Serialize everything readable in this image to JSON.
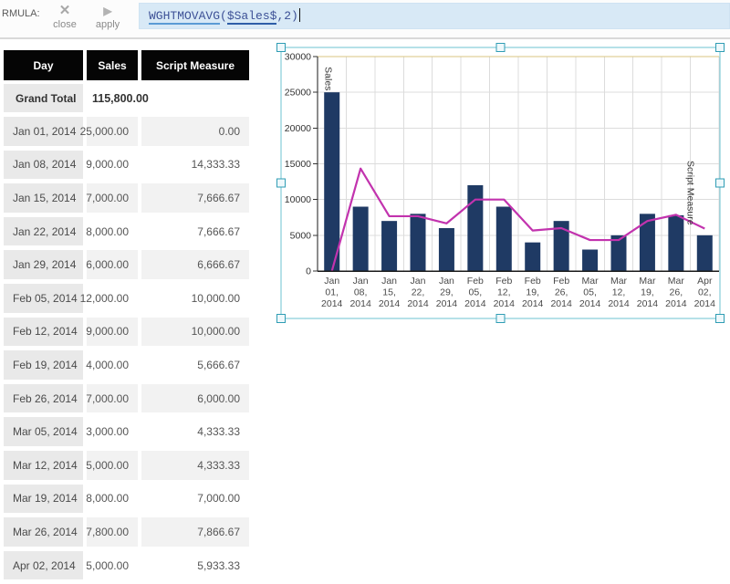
{
  "toolbar": {
    "label": "RMULA:",
    "close_label": "close",
    "apply_label": "apply",
    "close_icon": "✕",
    "apply_icon": "▶",
    "formula": {
      "func": "WGHTMOVAVG",
      "open": "(",
      "arg": "$Sales$",
      "tail": ",2)"
    }
  },
  "table": {
    "columns": [
      "Day",
      "Sales",
      "Script Measure"
    ],
    "grand_total": {
      "label": "Grand Total",
      "sales": "115,800.00",
      "script": ""
    },
    "rows": [
      {
        "day": "Jan 01, 2014",
        "sales": "25,000.00",
        "script": "0.00"
      },
      {
        "day": "Jan 08, 2014",
        "sales": "9,000.00",
        "script": "14,333.33"
      },
      {
        "day": "Jan 15, 2014",
        "sales": "7,000.00",
        "script": "7,666.67"
      },
      {
        "day": "Jan 22, 2014",
        "sales": "8,000.00",
        "script": "7,666.67"
      },
      {
        "day": "Jan 29, 2014",
        "sales": "6,000.00",
        "script": "6,666.67"
      },
      {
        "day": "Feb 05, 2014",
        "sales": "12,000.00",
        "script": "10,000.00"
      },
      {
        "day": "Feb 12, 2014",
        "sales": "9,000.00",
        "script": "10,000.00"
      },
      {
        "day": "Feb 19, 2014",
        "sales": "4,000.00",
        "script": "5,666.67"
      },
      {
        "day": "Feb 26, 2014",
        "sales": "7,000.00",
        "script": "6,000.00"
      },
      {
        "day": "Mar 05, 2014",
        "sales": "3,000.00",
        "script": "4,333.33"
      },
      {
        "day": "Mar 12, 2014",
        "sales": "5,000.00",
        "script": "4,333.33"
      },
      {
        "day": "Mar 19, 2014",
        "sales": "8,000.00",
        "script": "7,000.00"
      },
      {
        "day": "Mar 26, 2014",
        "sales": "7,800.00",
        "script": "7,866.67"
      },
      {
        "day": "Apr 02, 2014",
        "sales": "5,000.00",
        "script": "5,933.33"
      }
    ]
  },
  "chart_data": {
    "type": "combo (bar + line)",
    "categories": [
      "Jan 01, 2014",
      "Jan 08, 2014",
      "Jan 15, 2014",
      "Jan 22, 2014",
      "Jan 29, 2014",
      "Feb 05, 2014",
      "Feb 12, 2014",
      "Feb 19, 2014",
      "Feb 26, 2014",
      "Mar 05, 2014",
      "Mar 12, 2014",
      "Mar 19, 2014",
      "Mar 26, 2014",
      "Apr 02, 2014"
    ],
    "series": [
      {
        "name": "Sales",
        "render": "bar",
        "color": "#1f3a64",
        "values": [
          25000,
          9000,
          7000,
          8000,
          6000,
          12000,
          9000,
          4000,
          7000,
          3000,
          5000,
          8000,
          7800,
          5000
        ]
      },
      {
        "name": "Script Measure",
        "render": "line",
        "color": "#c233ae",
        "values": [
          0,
          14333.33,
          7666.67,
          7666.67,
          6666.67,
          10000,
          10000,
          5666.67,
          6000,
          4333.33,
          4333.33,
          7000,
          7866.67,
          5933.33
        ]
      }
    ],
    "title": "",
    "xlabel": "",
    "ylabel": "",
    "ylim": [
      0,
      30000
    ],
    "ytick_step": 5000,
    "yticks": [
      0,
      5000,
      10000,
      15000,
      20000,
      25000,
      30000
    ],
    "grid": true,
    "legend": "none (series labeled by rotated in-plot annotations)",
    "grid_color": "#dcdcdc",
    "grid_top_color": "#d8c480",
    "axis_color": "#1a1a1a"
  },
  "selection": {
    "frame_color": "#6ec3d2",
    "handle_fill": "#eef8fb",
    "handle_border": "#2f9db4"
  },
  "colors": {
    "table_header_bg": "#050505",
    "field_bg": "#d8e9f6",
    "formula_text": "#3c5096"
  }
}
